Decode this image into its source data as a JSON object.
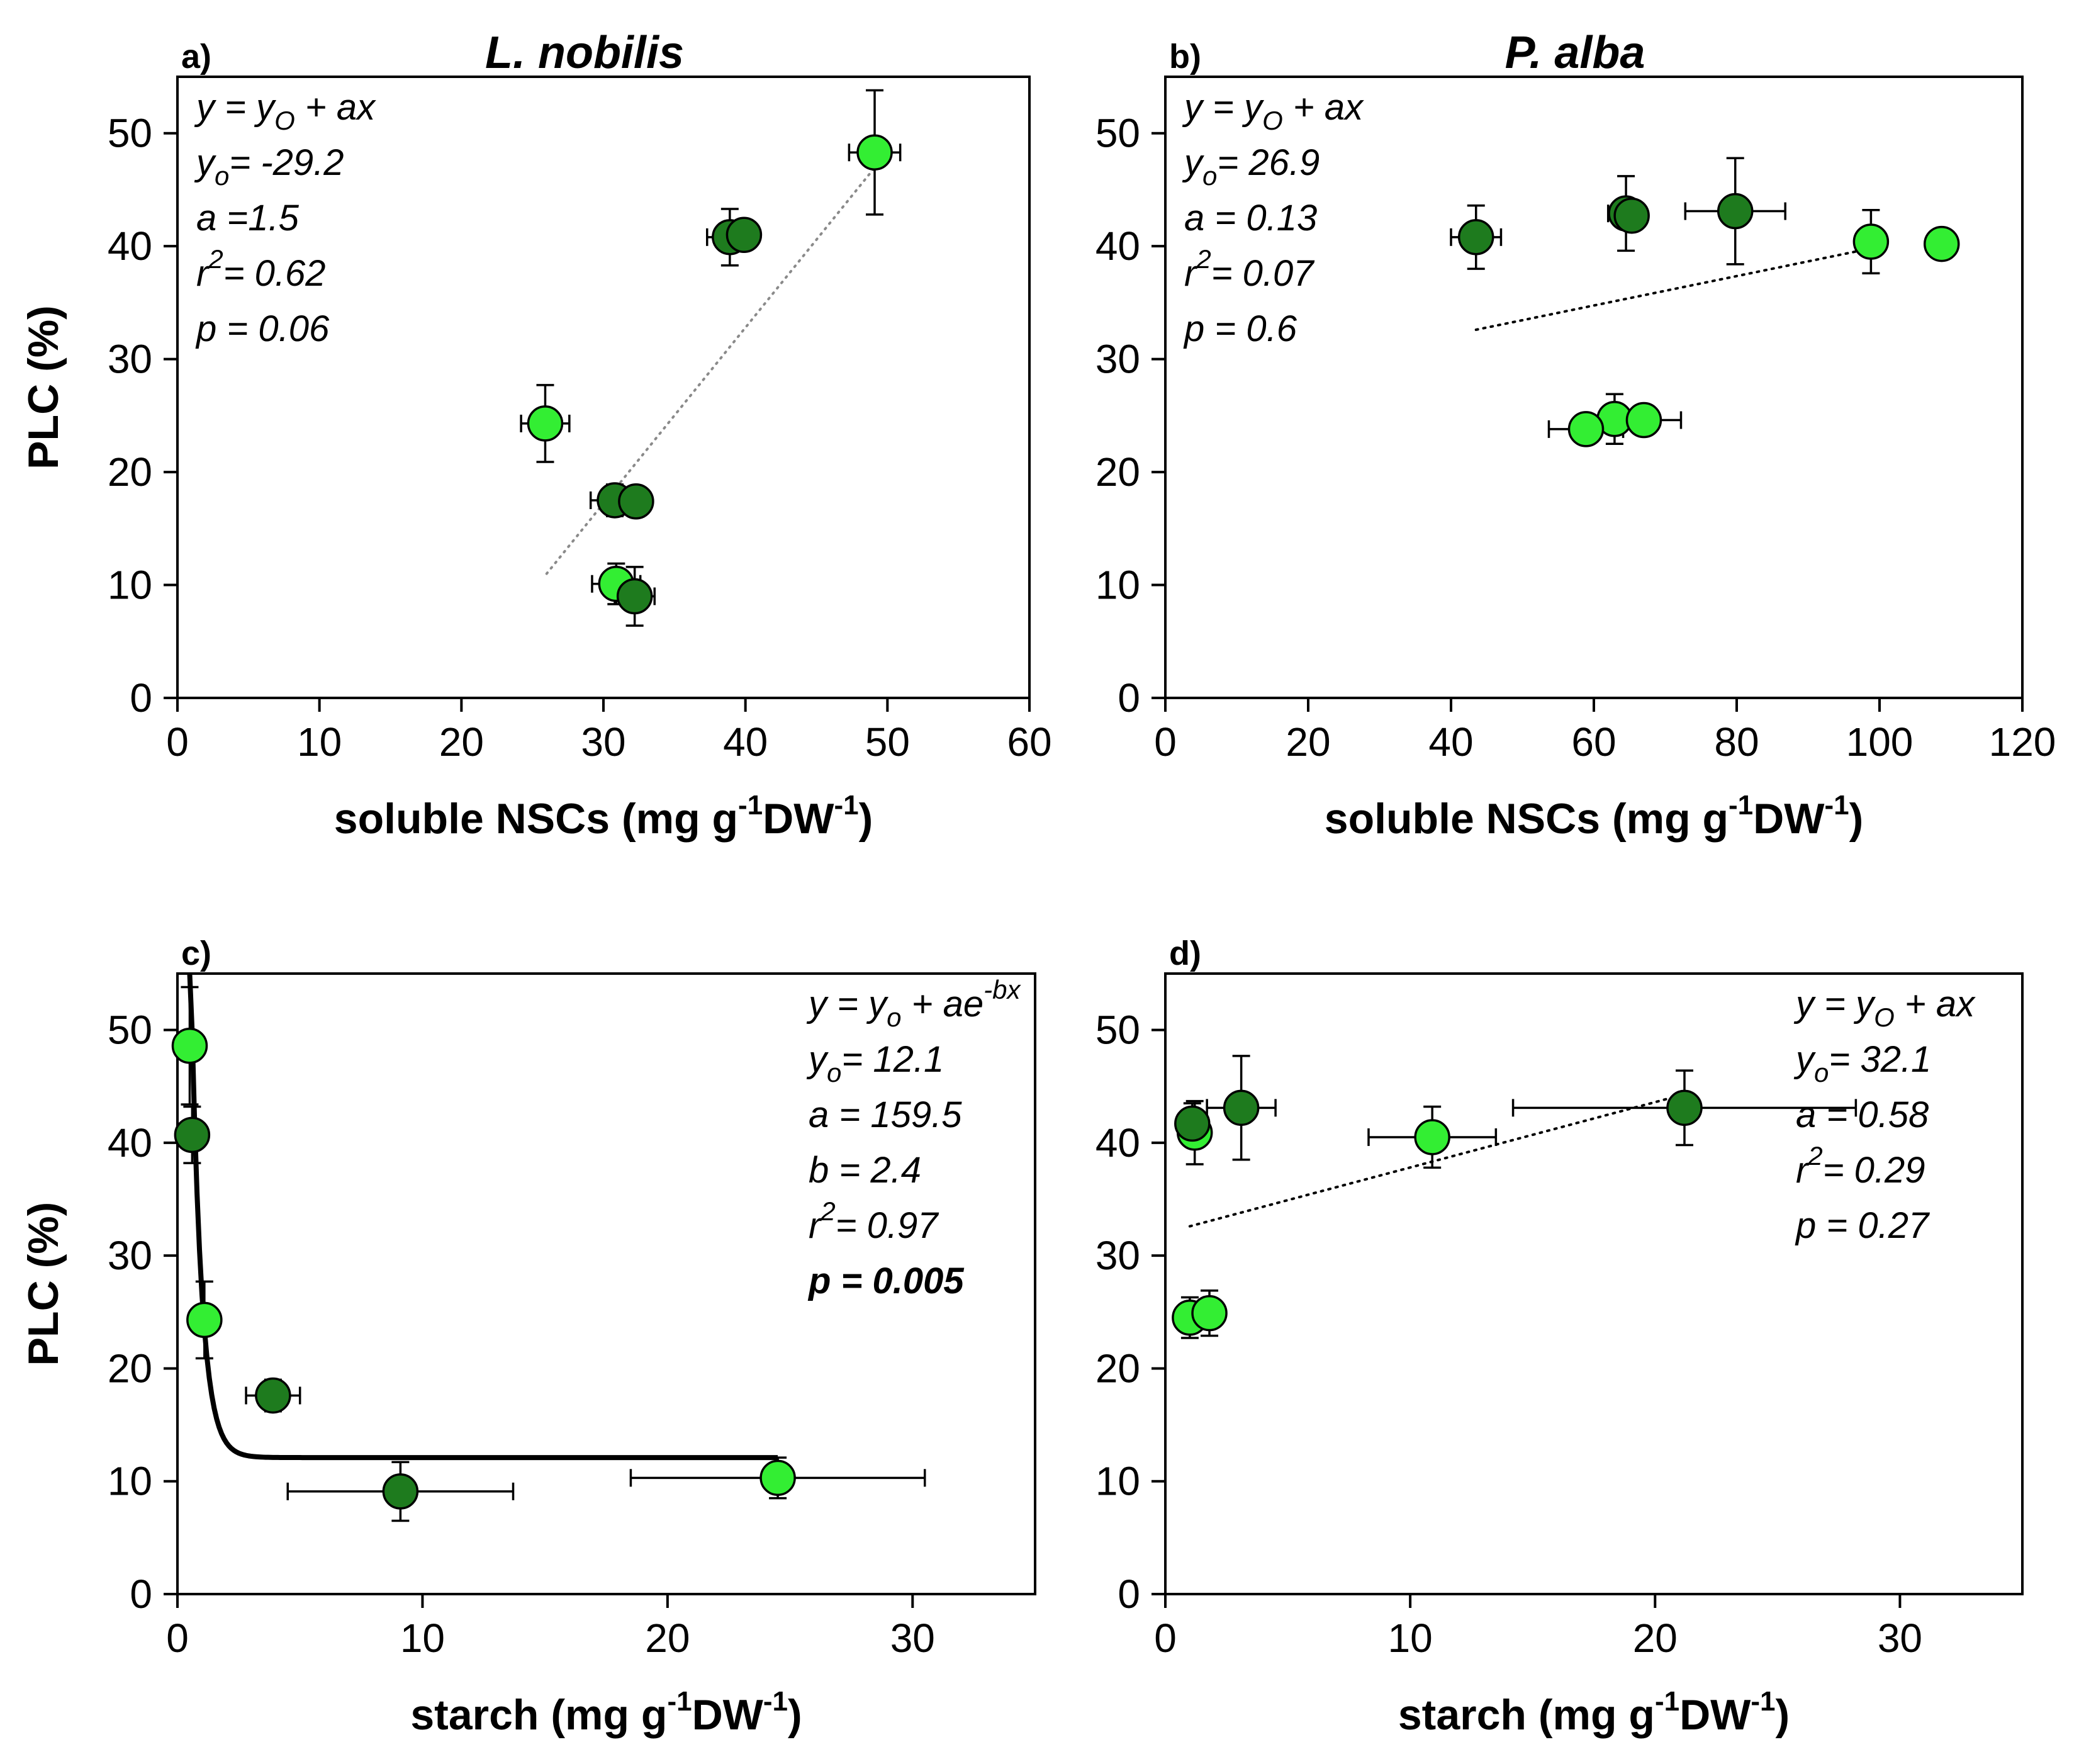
{
  "colors": {
    "dark_green": "#1e7b1e",
    "light_green": "#33ee33",
    "fit_line": "#000000",
    "background": "#ffffff"
  },
  "chart_data": [
    {
      "type": "scatter",
      "panel_label": "a)",
      "title": "L. nobilis",
      "xlabel": "soluble NSCs (mg g",
      "xlabel_sup1": "-1",
      "xlabel_mid": "DW",
      "xlabel_sup2": "-1",
      "xlabel_end": ")",
      "ylabel": "PLC (%)",
      "xlim": [
        0,
        60
      ],
      "ylim": [
        0,
        55
      ],
      "xticks": [
        "0",
        "10",
        "20",
        "30",
        "40",
        "50",
        "60"
      ],
      "yticks": [
        "0",
        "10",
        "20",
        "30",
        "40",
        "50"
      ],
      "series": [
        {
          "color": "light_green",
          "points": [
            {
              "x": 49.1,
              "y": 48.3,
              "xerr": 1.8,
              "yerr": 5.5
            },
            {
              "x": 25.9,
              "y": 24.3,
              "xerr": 1.7,
              "yerr": 3.4
            },
            {
              "x": 30.9,
              "y": 10.1,
              "xerr": 1.7,
              "yerr": 1.8
            }
          ]
        },
        {
          "color": "dark_green",
          "points": [
            {
              "x": 38.9,
              "y": 40.8,
              "xerr": 1.6,
              "yerr": 2.5
            },
            {
              "x": 39.9,
              "y": 41.0,
              "xerr": 0,
              "yerr": 0
            },
            {
              "x": 30.8,
              "y": 17.5,
              "xerr": 1.7,
              "yerr": 1.4
            },
            {
              "x": 32.3,
              "y": 17.4,
              "xerr": 0,
              "yerr": 0
            },
            {
              "x": 32.2,
              "y": 9.0,
              "xerr": 1.4,
              "yerr": 2.6
            }
          ]
        }
      ],
      "fit": {
        "style": "sparse-dotted",
        "kind": "linear",
        "from": [
          26.0,
          11.0
        ],
        "to": [
          49.0,
          46.8
        ]
      },
      "equation_lines": [
        {
          "parts": [
            {
              "t": "y = y"
            },
            {
              "t": "O",
              "sub": true
            },
            {
              "t": " + ax"
            }
          ]
        },
        {
          "parts": [
            {
              "t": "y"
            },
            {
              "t": "o",
              "sub": true
            },
            {
              "t": "= -29.2"
            }
          ]
        },
        {
          "parts": [
            {
              "t": "a =1.5"
            }
          ]
        },
        {
          "parts": [
            {
              "t": "r"
            },
            {
              "t": "2",
              "sup": true
            },
            {
              "t": "= 0.62"
            }
          ]
        },
        {
          "parts": [
            {
              "t": "p = 0.06"
            }
          ]
        }
      ],
      "equation_anchor": "top-left"
    },
    {
      "type": "scatter",
      "panel_label": "b)",
      "title": "P. alba",
      "xlabel": "soluble NSCs (mg g",
      "xlabel_sup1": "-1",
      "xlabel_mid": "DW",
      "xlabel_sup2": "-1",
      "xlabel_end": ")",
      "ylabel": "",
      "xlim": [
        0,
        120
      ],
      "ylim": [
        0,
        55
      ],
      "xticks": [
        "0",
        "20",
        "40",
        "60",
        "80",
        "100",
        "120"
      ],
      "yticks": [
        "0",
        "10",
        "20",
        "30",
        "40",
        "50"
      ],
      "series": [
        {
          "color": "dark_green",
          "points": [
            {
              "x": 43.5,
              "y": 40.8,
              "xerr": 3.5,
              "yerr": 2.8
            },
            {
              "x": 64.5,
              "y": 42.9,
              "xerr": 2.5,
              "yerr": 3.3
            },
            {
              "x": 65.3,
              "y": 42.7,
              "xerr": 0,
              "yerr": 0
            },
            {
              "x": 79.8,
              "y": 43.1,
              "xerr": 7.0,
              "yerr": 4.7
            }
          ]
        },
        {
          "color": "light_green",
          "points": [
            {
              "x": 98.8,
              "y": 40.4,
              "xerr": 0,
              "yerr": 2.8
            },
            {
              "x": 108.7,
              "y": 40.2,
              "xerr": 0,
              "yerr": 0
            },
            {
              "x": 62.9,
              "y": 24.7,
              "xerr": 0,
              "yerr": 2.2
            },
            {
              "x": 58.9,
              "y": 23.8,
              "xerr": 5.2,
              "yerr": 0
            },
            {
              "x": 67.0,
              "y": 24.6,
              "xerr": 5.2,
              "yerr": 0
            }
          ]
        }
      ],
      "fit": {
        "style": "dotted",
        "kind": "linear",
        "from": [
          43.5,
          32.6
        ],
        "to": [
          98.8,
          39.8
        ]
      },
      "equation_lines": [
        {
          "parts": [
            {
              "t": "y = y"
            },
            {
              "t": "O",
              "sub": true
            },
            {
              "t": " + ax"
            }
          ]
        },
        {
          "parts": [
            {
              "t": "y"
            },
            {
              "t": "o",
              "sub": true
            },
            {
              "t": "= 26.9"
            }
          ]
        },
        {
          "parts": [
            {
              "t": "a = 0.13"
            }
          ]
        },
        {
          "parts": [
            {
              "t": "r"
            },
            {
              "t": "2",
              "sup": true
            },
            {
              "t": "= 0.07"
            }
          ]
        },
        {
          "parts": [
            {
              "t": "p = 0.6"
            }
          ]
        }
      ],
      "equation_anchor": "top-left"
    },
    {
      "type": "scatter",
      "panel_label": "c)",
      "title": "",
      "xlabel": "starch (mg g",
      "xlabel_sup1": "-1",
      "xlabel_mid": "DW",
      "xlabel_sup2": "-1",
      "xlabel_end": ")",
      "ylabel": "PLC (%)",
      "xlim": [
        0,
        35
      ],
      "ylim": [
        0,
        55
      ],
      "xticks": [
        "0",
        "10",
        "20",
        "30"
      ],
      "yticks": [
        "0",
        "10",
        "20",
        "30",
        "40",
        "50"
      ],
      "series": [
        {
          "color": "light_green",
          "points": [
            {
              "x": 0.5,
              "y": 48.6,
              "xerr": 0,
              "yerr": 5.2
            },
            {
              "x": 1.1,
              "y": 24.3,
              "xerr": 0,
              "yerr": 3.4
            },
            {
              "x": 24.5,
              "y": 10.3,
              "xerr": 6.0,
              "yerr": 1.8
            }
          ]
        },
        {
          "color": "dark_green",
          "points": [
            {
              "x": 0.6,
              "y": 40.7,
              "xerr": 0,
              "yerr": 2.5
            },
            {
              "x": 3.9,
              "y": 17.6,
              "xerr": 1.1,
              "yerr": 1.4
            },
            {
              "x": 9.1,
              "y": 9.1,
              "xerr": 4.6,
              "yerr": 2.6
            }
          ]
        }
      ],
      "fit": {
        "style": "solid",
        "kind": "exp_decay",
        "y0": 12.1,
        "a": 159.5,
        "b": 2.4,
        "xrange": [
          0.5,
          24.5
        ]
      },
      "equation_lines": [
        {
          "parts": [
            {
              "t": "y = y"
            },
            {
              "t": "o",
              "sub": true
            },
            {
              "t": " + ae"
            },
            {
              "t": "-bx",
              "sup": true
            }
          ]
        },
        {
          "parts": [
            {
              "t": "y"
            },
            {
              "t": "o",
              "sub": true
            },
            {
              "t": "= 12.1"
            }
          ]
        },
        {
          "parts": [
            {
              "t": "a = 159.5"
            }
          ]
        },
        {
          "parts": [
            {
              "t": "b = 2.4"
            }
          ]
        },
        {
          "parts": [
            {
              "t": "r"
            },
            {
              "t": "2",
              "sup": true
            },
            {
              "t": "= 0.97"
            }
          ]
        },
        {
          "parts": [
            {
              "t": "p = 0.005"
            }
          ],
          "bold": true
        }
      ],
      "equation_anchor": "top-right"
    },
    {
      "type": "scatter",
      "panel_label": "d)",
      "title": "",
      "xlabel": "starch (mg g",
      "xlabel_sup1": "-1",
      "xlabel_mid": "DW",
      "xlabel_sup2": "-1",
      "xlabel_end": ")",
      "ylabel": "",
      "xlim": [
        0,
        35
      ],
      "ylim": [
        0,
        55
      ],
      "xticks": [
        "0",
        "10",
        "20",
        "30"
      ],
      "yticks": [
        "0",
        "10",
        "20",
        "30",
        "40",
        "50"
      ],
      "series": [
        {
          "color": "light_green",
          "points": [
            {
              "x": 1.2,
              "y": 40.9,
              "xerr": 0,
              "yerr": 2.8
            },
            {
              "x": 10.9,
              "y": 40.5,
              "xerr": 2.6,
              "yerr": 2.7
            },
            {
              "x": 1.0,
              "y": 24.5,
              "xerr": 0,
              "yerr": 1.8
            },
            {
              "x": 1.8,
              "y": 24.9,
              "xerr": 0,
              "yerr": 2.0
            }
          ]
        },
        {
          "color": "dark_green",
          "points": [
            {
              "x": 1.1,
              "y": 41.7,
              "xerr": 0,
              "yerr": 1.8
            },
            {
              "x": 3.1,
              "y": 43.1,
              "xerr": 1.4,
              "yerr": 4.6
            },
            {
              "x": 21.2,
              "y": 43.1,
              "xerr": 7.0,
              "yerr": 3.3
            }
          ]
        }
      ],
      "fit": {
        "style": "dotted",
        "kind": "linear",
        "from": [
          1.0,
          32.6
        ],
        "to": [
          21.2,
          44.3
        ]
      },
      "equation_lines": [
        {
          "parts": [
            {
              "t": "y = y"
            },
            {
              "t": "O",
              "sub": true
            },
            {
              "t": " + ax"
            }
          ]
        },
        {
          "parts": [
            {
              "t": "y"
            },
            {
              "t": "o",
              "sub": true
            },
            {
              "t": "= 32.1"
            }
          ]
        },
        {
          "parts": [
            {
              "t": "a = 0.58"
            }
          ]
        },
        {
          "parts": [
            {
              "t": "r"
            },
            {
              "t": "2",
              "sup": true
            },
            {
              "t": "= 0.29"
            }
          ]
        },
        {
          "parts": [
            {
              "t": "p = 0.27"
            }
          ]
        }
      ],
      "equation_anchor": "top-right"
    }
  ]
}
